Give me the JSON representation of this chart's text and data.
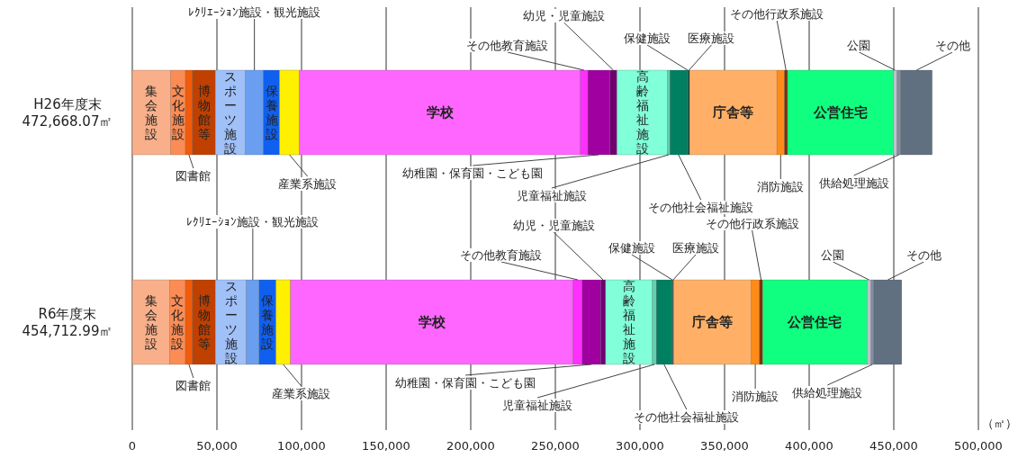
{
  "chart_data": {
    "type": "bar",
    "orientation": "horizontal",
    "stacked": true,
    "categories": [
      "H26年度末\n472,668.07㎡",
      "R6年度末\n454,712.99㎡"
    ],
    "series": [
      {
        "name": "集会施設",
        "color": "#f9b08a",
        "values": [
          22500,
          21900
        ]
      },
      {
        "name": "文化施設",
        "color": "#fb8c55",
        "values": [
          8900,
          9500
        ]
      },
      {
        "name": "図書館",
        "color": "#f25b0a",
        "values": [
          4100,
          4100
        ]
      },
      {
        "name": "博物館等",
        "color": "#c04000",
        "values": [
          13600,
          13600
        ]
      },
      {
        "name": "スポーツ施設",
        "color": "#a0c0f8",
        "values": [
          17800,
          18300
        ]
      },
      {
        "name": "ﾚｸﾘｴｰｼｮﾝ施設・観光施設",
        "color": "#6a9ef0",
        "values": [
          10500,
          7600
        ]
      },
      {
        "name": "保養施設",
        "color": "#1060f0",
        "values": [
          9600,
          9900
        ]
      },
      {
        "name": "産業系施設",
        "color": "#fff000",
        "values": [
          11800,
          8600
        ]
      },
      {
        "name": "学校",
        "color": "#ff66ff",
        "values": [
          165900,
          167100
        ]
      },
      {
        "name": "その他教育施設",
        "color": "#ff30ff",
        "values": [
          4500,
          5300
        ]
      },
      {
        "name": "幼稚園・保育園・こども園",
        "color": "#a000a0",
        "values": [
          13000,
          10900
        ]
      },
      {
        "name": "幼児・児童施設",
        "color": "#700070",
        "values": [
          4200,
          2900
        ]
      },
      {
        "name": "高齢福祉施設",
        "color": "#80ffd8",
        "values": [
          29900,
          27700
        ]
      },
      {
        "name": "児童福祉施設",
        "color": "#60d0b0",
        "values": [
          1400,
          2300
        ]
      },
      {
        "name": "その他社会福祉施設",
        "color": "#008060",
        "values": [
          10100,
          9100
        ]
      },
      {
        "name": "保健施設",
        "color": "#006040",
        "values": [
          800,
          600
        ]
      },
      {
        "name": "医療施設",
        "color": "#004030",
        "values": [
          700,
          500
        ]
      },
      {
        "name": "庁舎等",
        "color": "#ffb066",
        "values": [
          51600,
          45700
        ]
      },
      {
        "name": "消防施設",
        "color": "#ff8c1a",
        "values": [
          4500,
          5100
        ]
      },
      {
        "name": "その他行政系施設",
        "color": "#803000",
        "values": [
          1800,
          1800
        ]
      },
      {
        "name": "公営住宅",
        "color": "#10ff80",
        "values": [
          62400,
          61700
        ]
      },
      {
        "name": "公園",
        "color": "#c0c0d0",
        "values": [
          2300,
          2300
        ]
      },
      {
        "name": "供給処理施設",
        "color": "#8090a0",
        "values": [
          2200,
          1800
        ]
      },
      {
        "name": "その他",
        "color": "#607080",
        "values": [
          18600,
          16400
        ]
      }
    ],
    "xlim": [
      0,
      500000
    ],
    "xticks": [
      0,
      {
        "value": 50000,
        "label": "50,000"
      },
      {
        "value": 100000,
        "label": "100,000"
      },
      {
        "value": 150000,
        "label": "150,000"
      },
      {
        "value": 200000,
        "label": "200,000"
      },
      {
        "value": 250000,
        "label": "250,000"
      },
      {
        "value": 300000,
        "label": "300,000"
      },
      {
        "value": 350000,
        "label": "350,000"
      },
      {
        "value": 400000,
        "label": "400,000"
      },
      {
        "value": 450000,
        "label": "450,000"
      },
      {
        "value": 500000,
        "label": "500,000"
      }
    ],
    "xlabel": "（㎡）",
    "grid": "x"
  }
}
